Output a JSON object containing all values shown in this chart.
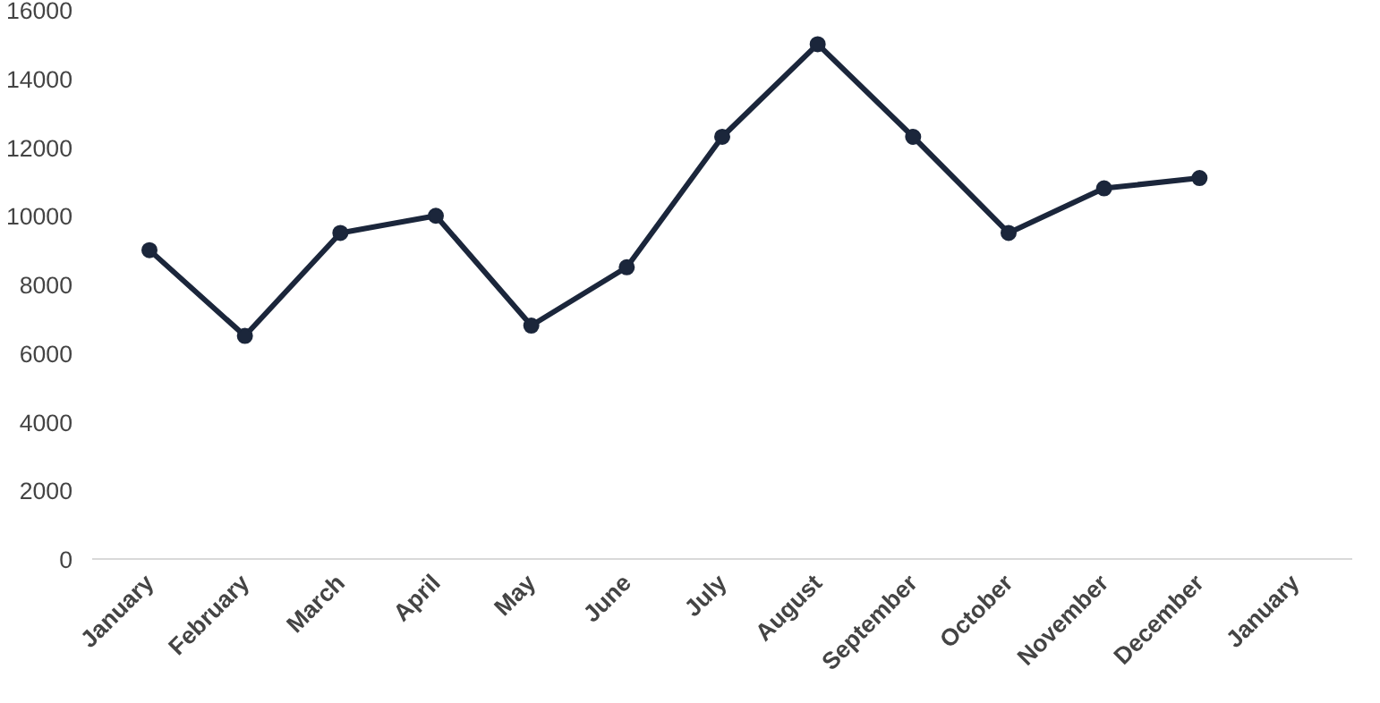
{
  "chart_data": {
    "type": "line",
    "categories": [
      "January",
      "February",
      "March",
      "April",
      "May",
      "June",
      "July",
      "August",
      "September",
      "October",
      "November",
      "December",
      "January"
    ],
    "series": [
      {
        "color": "#1b263b",
        "values": [
          9000,
          6500,
          9500,
          10000,
          6800,
          8500,
          12300,
          15000,
          12300,
          9500,
          10800,
          11100,
          null
        ]
      }
    ],
    "ylim": [
      0,
      16000
    ],
    "yticks": [
      0,
      2000,
      4000,
      6000,
      8000,
      10000,
      12000,
      14000,
      16000
    ],
    "grid": false,
    "marker": "circle",
    "line_style": "solid"
  }
}
